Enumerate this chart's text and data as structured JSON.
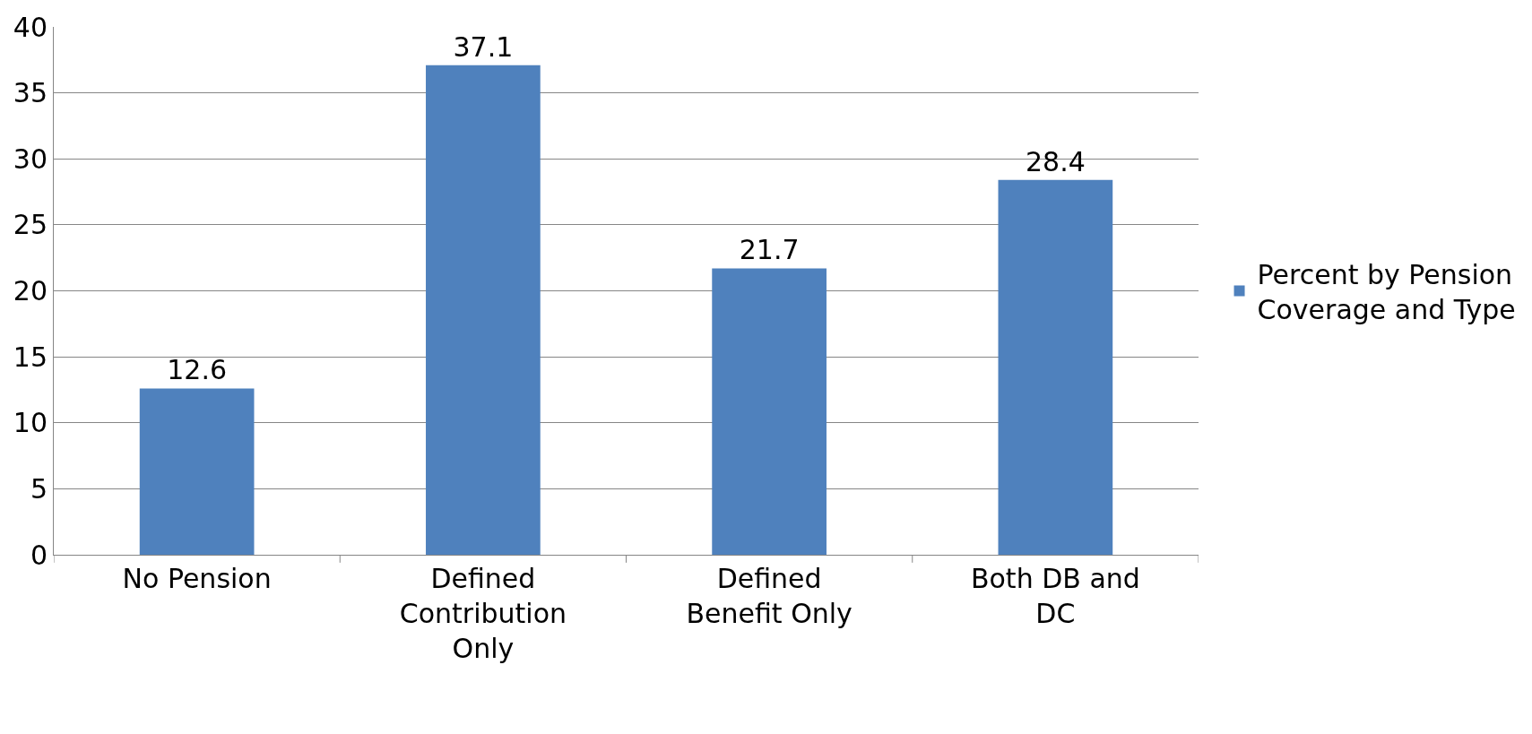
{
  "chart_data": {
    "type": "bar",
    "categories": [
      "No Pension",
      "Defined Contribution Only",
      "Defined Benefit Only",
      "Both DB and DC"
    ],
    "series": [
      {
        "name": "Percent by Pension Coverage and Type",
        "color": "#4f81bd",
        "values": [
          12.6,
          37.1,
          21.7,
          28.4
        ]
      }
    ],
    "ylim": [
      0,
      40
    ],
    "yticks": [
      0,
      5,
      10,
      15,
      20,
      25,
      30,
      35,
      40
    ],
    "grid": "y",
    "legend": "right",
    "data_labels": true
  }
}
